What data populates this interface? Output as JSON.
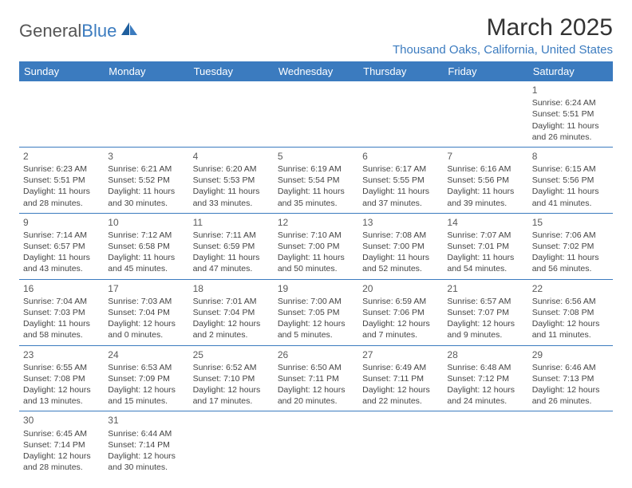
{
  "logo": {
    "text1": "General",
    "text2": "Blue"
  },
  "title": "March 2025",
  "location": "Thousand Oaks, California, United States",
  "colors": {
    "accent": "#3b7bbf",
    "text": "#333333",
    "cellText": "#444444"
  },
  "weekdays": [
    "Sunday",
    "Monday",
    "Tuesday",
    "Wednesday",
    "Thursday",
    "Friday",
    "Saturday"
  ],
  "cells": [
    null,
    null,
    null,
    null,
    null,
    null,
    {
      "n": "1",
      "sr": "Sunrise: 6:24 AM",
      "ss": "Sunset: 5:51 PM",
      "d1": "Daylight: 11 hours",
      "d2": "and 26 minutes."
    },
    {
      "n": "2",
      "sr": "Sunrise: 6:23 AM",
      "ss": "Sunset: 5:51 PM",
      "d1": "Daylight: 11 hours",
      "d2": "and 28 minutes."
    },
    {
      "n": "3",
      "sr": "Sunrise: 6:21 AM",
      "ss": "Sunset: 5:52 PM",
      "d1": "Daylight: 11 hours",
      "d2": "and 30 minutes."
    },
    {
      "n": "4",
      "sr": "Sunrise: 6:20 AM",
      "ss": "Sunset: 5:53 PM",
      "d1": "Daylight: 11 hours",
      "d2": "and 33 minutes."
    },
    {
      "n": "5",
      "sr": "Sunrise: 6:19 AM",
      "ss": "Sunset: 5:54 PM",
      "d1": "Daylight: 11 hours",
      "d2": "and 35 minutes."
    },
    {
      "n": "6",
      "sr": "Sunrise: 6:17 AM",
      "ss": "Sunset: 5:55 PM",
      "d1": "Daylight: 11 hours",
      "d2": "and 37 minutes."
    },
    {
      "n": "7",
      "sr": "Sunrise: 6:16 AM",
      "ss": "Sunset: 5:56 PM",
      "d1": "Daylight: 11 hours",
      "d2": "and 39 minutes."
    },
    {
      "n": "8",
      "sr": "Sunrise: 6:15 AM",
      "ss": "Sunset: 5:56 PM",
      "d1": "Daylight: 11 hours",
      "d2": "and 41 minutes."
    },
    {
      "n": "9",
      "sr": "Sunrise: 7:14 AM",
      "ss": "Sunset: 6:57 PM",
      "d1": "Daylight: 11 hours",
      "d2": "and 43 minutes."
    },
    {
      "n": "10",
      "sr": "Sunrise: 7:12 AM",
      "ss": "Sunset: 6:58 PM",
      "d1": "Daylight: 11 hours",
      "d2": "and 45 minutes."
    },
    {
      "n": "11",
      "sr": "Sunrise: 7:11 AM",
      "ss": "Sunset: 6:59 PM",
      "d1": "Daylight: 11 hours",
      "d2": "and 47 minutes."
    },
    {
      "n": "12",
      "sr": "Sunrise: 7:10 AM",
      "ss": "Sunset: 7:00 PM",
      "d1": "Daylight: 11 hours",
      "d2": "and 50 minutes."
    },
    {
      "n": "13",
      "sr": "Sunrise: 7:08 AM",
      "ss": "Sunset: 7:00 PM",
      "d1": "Daylight: 11 hours",
      "d2": "and 52 minutes."
    },
    {
      "n": "14",
      "sr": "Sunrise: 7:07 AM",
      "ss": "Sunset: 7:01 PM",
      "d1": "Daylight: 11 hours",
      "d2": "and 54 minutes."
    },
    {
      "n": "15",
      "sr": "Sunrise: 7:06 AM",
      "ss": "Sunset: 7:02 PM",
      "d1": "Daylight: 11 hours",
      "d2": "and 56 minutes."
    },
    {
      "n": "16",
      "sr": "Sunrise: 7:04 AM",
      "ss": "Sunset: 7:03 PM",
      "d1": "Daylight: 11 hours",
      "d2": "and 58 minutes."
    },
    {
      "n": "17",
      "sr": "Sunrise: 7:03 AM",
      "ss": "Sunset: 7:04 PM",
      "d1": "Daylight: 12 hours",
      "d2": "and 0 minutes."
    },
    {
      "n": "18",
      "sr": "Sunrise: 7:01 AM",
      "ss": "Sunset: 7:04 PM",
      "d1": "Daylight: 12 hours",
      "d2": "and 2 minutes."
    },
    {
      "n": "19",
      "sr": "Sunrise: 7:00 AM",
      "ss": "Sunset: 7:05 PM",
      "d1": "Daylight: 12 hours",
      "d2": "and 5 minutes."
    },
    {
      "n": "20",
      "sr": "Sunrise: 6:59 AM",
      "ss": "Sunset: 7:06 PM",
      "d1": "Daylight: 12 hours",
      "d2": "and 7 minutes."
    },
    {
      "n": "21",
      "sr": "Sunrise: 6:57 AM",
      "ss": "Sunset: 7:07 PM",
      "d1": "Daylight: 12 hours",
      "d2": "and 9 minutes."
    },
    {
      "n": "22",
      "sr": "Sunrise: 6:56 AM",
      "ss": "Sunset: 7:08 PM",
      "d1": "Daylight: 12 hours",
      "d2": "and 11 minutes."
    },
    {
      "n": "23",
      "sr": "Sunrise: 6:55 AM",
      "ss": "Sunset: 7:08 PM",
      "d1": "Daylight: 12 hours",
      "d2": "and 13 minutes."
    },
    {
      "n": "24",
      "sr": "Sunrise: 6:53 AM",
      "ss": "Sunset: 7:09 PM",
      "d1": "Daylight: 12 hours",
      "d2": "and 15 minutes."
    },
    {
      "n": "25",
      "sr": "Sunrise: 6:52 AM",
      "ss": "Sunset: 7:10 PM",
      "d1": "Daylight: 12 hours",
      "d2": "and 17 minutes."
    },
    {
      "n": "26",
      "sr": "Sunrise: 6:50 AM",
      "ss": "Sunset: 7:11 PM",
      "d1": "Daylight: 12 hours",
      "d2": "and 20 minutes."
    },
    {
      "n": "27",
      "sr": "Sunrise: 6:49 AM",
      "ss": "Sunset: 7:11 PM",
      "d1": "Daylight: 12 hours",
      "d2": "and 22 minutes."
    },
    {
      "n": "28",
      "sr": "Sunrise: 6:48 AM",
      "ss": "Sunset: 7:12 PM",
      "d1": "Daylight: 12 hours",
      "d2": "and 24 minutes."
    },
    {
      "n": "29",
      "sr": "Sunrise: 6:46 AM",
      "ss": "Sunset: 7:13 PM",
      "d1": "Daylight: 12 hours",
      "d2": "and 26 minutes."
    },
    {
      "n": "30",
      "sr": "Sunrise: 6:45 AM",
      "ss": "Sunset: 7:14 PM",
      "d1": "Daylight: 12 hours",
      "d2": "and 28 minutes."
    },
    {
      "n": "31",
      "sr": "Sunrise: 6:44 AM",
      "ss": "Sunset: 7:14 PM",
      "d1": "Daylight: 12 hours",
      "d2": "and 30 minutes."
    },
    null,
    null,
    null,
    null,
    null
  ]
}
